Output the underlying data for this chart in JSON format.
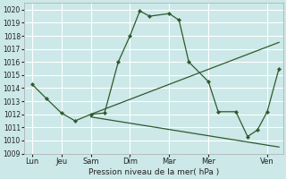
{
  "xlabel": "Pression niveau de la mer( hPa )",
  "bg_color": "#cce8e8",
  "grid_color": "#ffffff",
  "line_color": "#2d5a2d",
  "ylim": [
    1009,
    1020.5
  ],
  "yticks": [
    1009,
    1010,
    1011,
    1012,
    1013,
    1014,
    1015,
    1016,
    1017,
    1018,
    1019,
    1020
  ],
  "x_labels": [
    "Lun",
    "Jeu",
    "Sam",
    "Dim",
    "Mar",
    "Mer",
    "Ven"
  ],
  "x_positions": [
    0,
    0.75,
    1.5,
    2.5,
    3.5,
    4.5,
    6.0
  ],
  "xlim": [
    -0.2,
    6.4
  ],
  "zigzag": {
    "x": [
      0,
      0.37,
      0.75,
      1.1,
      1.5,
      1.85,
      2.2,
      2.5,
      2.75,
      3.0,
      3.5,
      3.75,
      4.0,
      4.5,
      4.75,
      5.2,
      5.5,
      5.75,
      6.0,
      6.3
    ],
    "y": [
      1014.3,
      1013.2,
      1012.1,
      1011.5,
      1012.0,
      1012.1,
      1016.0,
      1018.0,
      1019.9,
      1019.5,
      1019.7,
      1019.2,
      1016.0,
      1014.5,
      1012.2,
      1012.2,
      1010.3,
      1010.8,
      1012.2,
      1015.5
    ]
  },
  "line_asc": {
    "x": [
      1.5,
      6.3
    ],
    "y": [
      1012.0,
      1017.5
    ]
  },
  "line_desc": {
    "x": [
      1.5,
      6.3
    ],
    "y": [
      1011.8,
      1009.5
    ]
  }
}
